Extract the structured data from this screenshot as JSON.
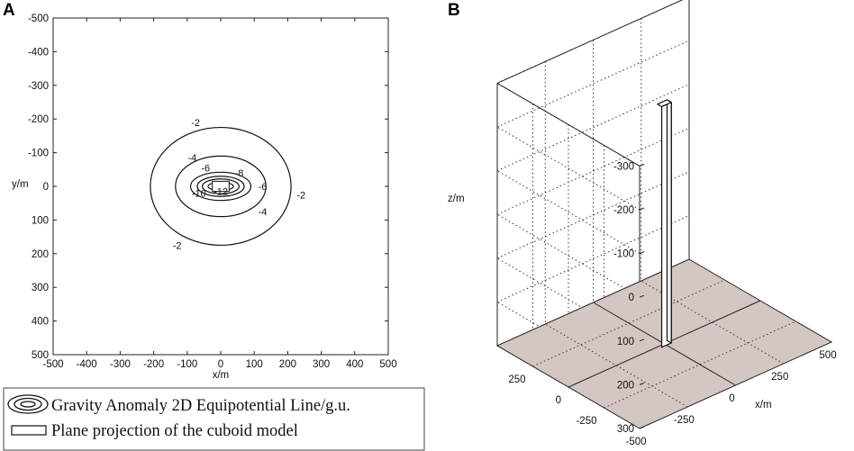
{
  "panels": {
    "a": "A",
    "b": "B"
  },
  "chart_data": [
    {
      "type": "contour",
      "xlabel": "x/m",
      "ylabel": "y/m",
      "xlim": [
        -500,
        500
      ],
      "ylim": [
        -500,
        500
      ],
      "y_axis_inverted": true,
      "xticks": [
        -500,
        -400,
        -300,
        -200,
        -100,
        0,
        100,
        200,
        300,
        400,
        500
      ],
      "yticks": [
        -500,
        -400,
        -300,
        -200,
        -100,
        0,
        100,
        200,
        300,
        400,
        500
      ],
      "contours": [
        {
          "level": -2,
          "rx": 210,
          "ry": 175,
          "labels": [
            {
              "text": "-2",
              "x": -75,
              "y": -190
            },
            {
              "text": "-2",
              "x": 240,
              "y": 25
            },
            {
              "text": "-2",
              "x": -130,
              "y": 175
            }
          ]
        },
        {
          "level": -4,
          "rx": 135,
          "ry": 90,
          "labels": [
            {
              "text": "-4",
              "x": -85,
              "y": -85
            },
            {
              "text": "-4",
              "x": 125,
              "y": 75
            }
          ]
        },
        {
          "level": -6,
          "rx": 90,
          "ry": 42,
          "labels": [
            {
              "text": "-6",
              "x": -45,
              "y": -55
            },
            {
              "text": "-6",
              "x": 125,
              "y": 0
            }
          ]
        },
        {
          "level": -8,
          "rx": 70,
          "ry": 30,
          "labels": [
            {
              "text": "-8",
              "x": 55,
              "y": -40
            }
          ]
        },
        {
          "level": -10,
          "rx": 55,
          "ry": 22,
          "labels": [
            {
              "text": "-10",
              "x": -65,
              "y": 20
            }
          ]
        },
        {
          "level": -12,
          "rx": 38,
          "ry": 12,
          "labels": [
            {
              "text": "-12",
              "x": 0,
              "y": 15
            }
          ]
        }
      ],
      "cuboid_projection": {
        "x": [
          -25,
          25
        ],
        "y": [
          -15,
          15
        ]
      },
      "legend": [
        {
          "label": "Gravity Anomaly 2D Equipotential Line/g.u."
        },
        {
          "label": "Plane projection of the cuboid model"
        }
      ]
    },
    {
      "type": "3d-box",
      "xlabel": "x/m",
      "ylabel": "",
      "zlabel": "z/m",
      "xticks": [
        -500,
        -250,
        0,
        250,
        500
      ],
      "yticks": [
        -250,
        0,
        250
      ],
      "zticks": [
        -300,
        -200,
        -100,
        0,
        100,
        200,
        300
      ],
      "xlim": [
        -500,
        500
      ],
      "ylim": [
        -500,
        500
      ],
      "zlim": [
        -300,
        300
      ],
      "z_axis_inverted": true,
      "grid": true,
      "plane_z": 300,
      "plane_color": "#d3c6c3",
      "cuboid": {
        "x": [
          -25,
          25
        ],
        "y": [
          -15,
          15
        ],
        "z": [
          -250,
          300
        ]
      }
    }
  ]
}
